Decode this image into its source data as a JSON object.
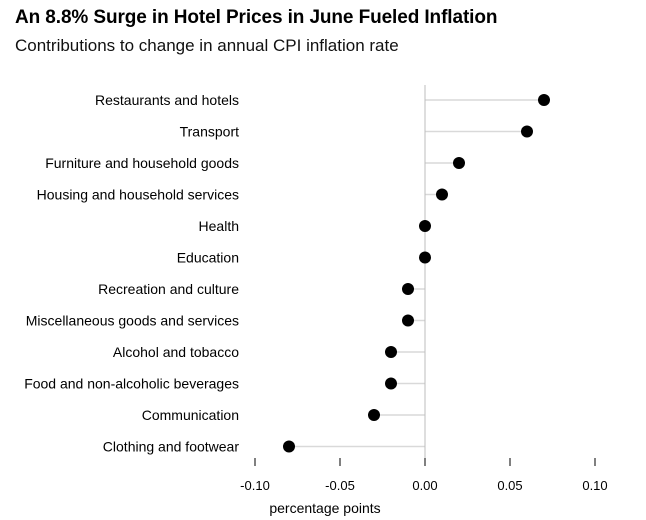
{
  "title": "An 8.8% Surge in Hotel Prices in June Fueled Inflation",
  "subtitle": "Contributions to change in annual CPI inflation rate",
  "colors": {
    "dot": "#000000",
    "stem": "#d9d9d9",
    "zero_line": "#bdbdbd",
    "tick": "#000000"
  },
  "chart_data": {
    "type": "scatter",
    "title": "An 8.8% Surge in Hotel Prices in June Fueled Inflation",
    "subtitle": "Contributions to change in annual CPI inflation rate",
    "xlabel": "percentage points",
    "ylabel": "",
    "xlim": [
      -0.1,
      0.1
    ],
    "x_ticks": [
      -0.1,
      -0.05,
      0.0,
      0.05,
      0.1
    ],
    "x_tick_labels": [
      "-0.10",
      "-0.05",
      "0.00",
      "0.05",
      "0.10"
    ],
    "grid": false,
    "categories": [
      "Restaurants and hotels",
      "Transport",
      "Furniture and household goods",
      "Housing and household services",
      "Health",
      "Education",
      "Recreation and culture",
      "Miscellaneous goods and services",
      "Alcohol and tobacco",
      "Food and non-alcoholic beverages",
      "Communication",
      "Clothing and footwear"
    ],
    "values": [
      0.07,
      0.06,
      0.02,
      0.01,
      0.0,
      0.0,
      -0.01,
      -0.01,
      -0.02,
      -0.02,
      -0.03,
      -0.08
    ]
  }
}
